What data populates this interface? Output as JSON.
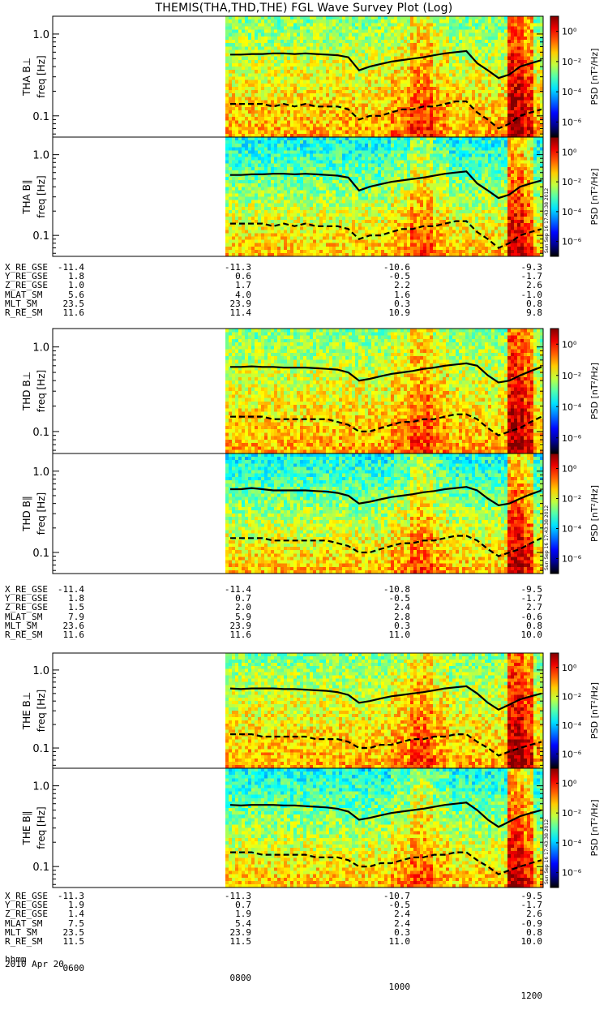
{
  "title": "THEMIS(THA,THD,THE) FGL Wave Survey Plot (Log)",
  "chart_data": {
    "type": "heatmap",
    "colorbar": {
      "label": "PSD [nT²/Hz]",
      "ticks": [
        "10⁰",
        "10⁻²",
        "10⁻⁴",
        "10⁻⁶"
      ],
      "log_range": [
        -7,
        1
      ]
    },
    "freq_ticks": [
      "1.0",
      "0.1"
    ],
    "time_axis": {
      "label": "hhmm",
      "ticks": [
        "0600",
        "0800",
        "1000",
        "1200"
      ],
      "data_start": "0800"
    },
    "date": "2010 Apr 20",
    "stamp": "Sun Sep 16 17:43:38 2012",
    "panels": [
      {
        "probe": "THA",
        "component": "B⊥",
        "ylabel": "freq [Hz]",
        "solid": [
          0.56,
          0.56,
          0.57,
          0.57,
          0.58,
          0.58,
          0.57,
          0.58,
          0.57,
          0.56,
          0.55,
          0.52,
          0.36,
          0.4,
          0.43,
          0.46,
          0.48,
          0.5,
          0.52,
          0.55,
          0.58,
          0.6,
          0.62,
          0.44,
          0.36,
          0.29,
          0.32,
          0.4,
          0.44,
          0.48
        ],
        "dashed": [
          0.14,
          0.14,
          0.14,
          0.14,
          0.13,
          0.14,
          0.13,
          0.14,
          0.13,
          0.13,
          0.13,
          0.12,
          0.09,
          0.1,
          0.1,
          0.11,
          0.12,
          0.12,
          0.13,
          0.13,
          0.14,
          0.15,
          0.15,
          0.11,
          0.09,
          0.07,
          0.08,
          0.1,
          0.11,
          0.12
        ]
      },
      {
        "probe": "THA",
        "component": "B∥",
        "ylabel": "freq [Hz]",
        "solid": [
          0.56,
          0.56,
          0.57,
          0.57,
          0.58,
          0.58,
          0.57,
          0.58,
          0.57,
          0.56,
          0.55,
          0.52,
          0.36,
          0.4,
          0.43,
          0.46,
          0.48,
          0.5,
          0.52,
          0.55,
          0.58,
          0.6,
          0.62,
          0.44,
          0.36,
          0.29,
          0.32,
          0.4,
          0.44,
          0.48
        ],
        "dashed": [
          0.14,
          0.14,
          0.14,
          0.14,
          0.13,
          0.14,
          0.13,
          0.14,
          0.13,
          0.13,
          0.13,
          0.12,
          0.09,
          0.1,
          0.1,
          0.11,
          0.12,
          0.12,
          0.13,
          0.13,
          0.14,
          0.15,
          0.15,
          0.11,
          0.09,
          0.07,
          0.08,
          0.1,
          0.11,
          0.12
        ]
      },
      {
        "probe": "THD",
        "component": "B⊥",
        "ylabel": "freq [Hz]",
        "solid": [
          0.58,
          0.58,
          0.59,
          0.58,
          0.58,
          0.57,
          0.57,
          0.57,
          0.56,
          0.55,
          0.54,
          0.5,
          0.4,
          0.42,
          0.45,
          0.48,
          0.5,
          0.52,
          0.55,
          0.57,
          0.6,
          0.62,
          0.64,
          0.6,
          0.46,
          0.38,
          0.4,
          0.46,
          0.52,
          0.58
        ],
        "dashed": [
          0.15,
          0.15,
          0.15,
          0.15,
          0.14,
          0.14,
          0.14,
          0.14,
          0.14,
          0.14,
          0.13,
          0.12,
          0.1,
          0.1,
          0.11,
          0.12,
          0.13,
          0.13,
          0.14,
          0.14,
          0.15,
          0.16,
          0.16,
          0.14,
          0.11,
          0.09,
          0.1,
          0.11,
          0.13,
          0.15
        ]
      },
      {
        "probe": "THD",
        "component": "B∥",
        "ylabel": "freq [Hz]",
        "solid": [
          0.6,
          0.6,
          0.62,
          0.6,
          0.58,
          0.58,
          0.58,
          0.58,
          0.57,
          0.56,
          0.54,
          0.5,
          0.4,
          0.42,
          0.45,
          0.48,
          0.5,
          0.52,
          0.55,
          0.57,
          0.6,
          0.62,
          0.64,
          0.58,
          0.46,
          0.38,
          0.4,
          0.46,
          0.52,
          0.58
        ],
        "dashed": [
          0.15,
          0.15,
          0.15,
          0.15,
          0.14,
          0.14,
          0.14,
          0.14,
          0.14,
          0.14,
          0.13,
          0.12,
          0.1,
          0.1,
          0.11,
          0.12,
          0.13,
          0.13,
          0.14,
          0.14,
          0.15,
          0.16,
          0.16,
          0.14,
          0.11,
          0.09,
          0.1,
          0.11,
          0.13,
          0.15
        ]
      },
      {
        "probe": "THE",
        "component": "B⊥",
        "ylabel": "freq [Hz]",
        "solid": [
          0.58,
          0.57,
          0.58,
          0.58,
          0.58,
          0.57,
          0.57,
          0.56,
          0.55,
          0.54,
          0.52,
          0.48,
          0.38,
          0.4,
          0.43,
          0.46,
          0.48,
          0.5,
          0.52,
          0.55,
          0.58,
          0.6,
          0.62,
          0.5,
          0.38,
          0.31,
          0.36,
          0.42,
          0.46,
          0.5
        ],
        "dashed": [
          0.15,
          0.15,
          0.15,
          0.14,
          0.14,
          0.14,
          0.14,
          0.14,
          0.13,
          0.13,
          0.13,
          0.12,
          0.1,
          0.1,
          0.11,
          0.11,
          0.12,
          0.13,
          0.13,
          0.14,
          0.14,
          0.15,
          0.15,
          0.12,
          0.1,
          0.08,
          0.09,
          0.1,
          0.11,
          0.12
        ]
      },
      {
        "probe": "THE",
        "component": "B∥",
        "ylabel": "freq [Hz]",
        "solid": [
          0.58,
          0.57,
          0.58,
          0.58,
          0.58,
          0.57,
          0.57,
          0.56,
          0.55,
          0.54,
          0.52,
          0.48,
          0.38,
          0.4,
          0.43,
          0.46,
          0.48,
          0.5,
          0.52,
          0.55,
          0.58,
          0.6,
          0.62,
          0.5,
          0.38,
          0.31,
          0.36,
          0.42,
          0.46,
          0.5
        ],
        "dashed": [
          0.15,
          0.15,
          0.15,
          0.14,
          0.14,
          0.14,
          0.14,
          0.14,
          0.13,
          0.13,
          0.13,
          0.12,
          0.1,
          0.1,
          0.11,
          0.11,
          0.12,
          0.13,
          0.13,
          0.14,
          0.14,
          0.15,
          0.15,
          0.12,
          0.1,
          0.08,
          0.09,
          0.1,
          0.11,
          0.12
        ]
      }
    ]
  },
  "ephemeris": [
    {
      "rows": [
        {
          "label": "X_RE_GSE",
          "values": [
            "-11.4",
            "-11.3",
            "-10.6",
            "-9.3"
          ]
        },
        {
          "label": "Y_RE_GSE",
          "values": [
            "1.8",
            "0.6",
            "-0.5",
            "-1.7"
          ]
        },
        {
          "label": "Z_RE_GSE",
          "values": [
            "1.0",
            "1.7",
            "2.2",
            "2.6"
          ]
        },
        {
          "label": "MLAT_SM",
          "values": [
            "5.6",
            "4.0",
            "1.6",
            "-1.0"
          ]
        },
        {
          "label": "MLT_SM",
          "values": [
            "23.5",
            "23.9",
            "0.3",
            "0.8"
          ]
        },
        {
          "label": "R_RE_SM",
          "values": [
            "11.6",
            "11.4",
            "10.9",
            "9.8"
          ]
        }
      ]
    },
    {
      "rows": [
        {
          "label": "X_RE_GSE",
          "values": [
            "-11.4",
            "-11.4",
            "-10.8",
            "-9.5"
          ]
        },
        {
          "label": "Y_RE_GSE",
          "values": [
            "1.8",
            "0.7",
            "-0.5",
            "-1.7"
          ]
        },
        {
          "label": "Z_RE_GSE",
          "values": [
            "1.5",
            "2.0",
            "2.4",
            "2.7"
          ]
        },
        {
          "label": "MLAT_SM",
          "values": [
            "7.9",
            "5.9",
            "2.8",
            "-0.6"
          ]
        },
        {
          "label": "MLT_SM",
          "values": [
            "23.6",
            "23.9",
            "0.3",
            "0.8"
          ]
        },
        {
          "label": "R_RE_SM",
          "values": [
            "11.6",
            "11.6",
            "11.0",
            "10.0"
          ]
        }
      ]
    },
    {
      "rows": [
        {
          "label": "X_RE_GSE",
          "values": [
            "-11.3",
            "-11.3",
            "-10.7",
            "-9.5"
          ]
        },
        {
          "label": "Y_RE_GSE",
          "values": [
            "1.9",
            "0.7",
            "-0.5",
            "-1.7"
          ]
        },
        {
          "label": "Z_RE_GSE",
          "values": [
            "1.4",
            "1.9",
            "2.4",
            "2.6"
          ]
        },
        {
          "label": "MLAT_SM",
          "values": [
            "7.5",
            "5.4",
            "2.4",
            "-0.9"
          ]
        },
        {
          "label": "MLT_SM",
          "values": [
            "23.5",
            "23.9",
            "0.3",
            "0.8"
          ]
        },
        {
          "label": "R_RE_SM",
          "values": [
            "11.5",
            "11.5",
            "11.0",
            "10.0"
          ]
        }
      ]
    }
  ]
}
